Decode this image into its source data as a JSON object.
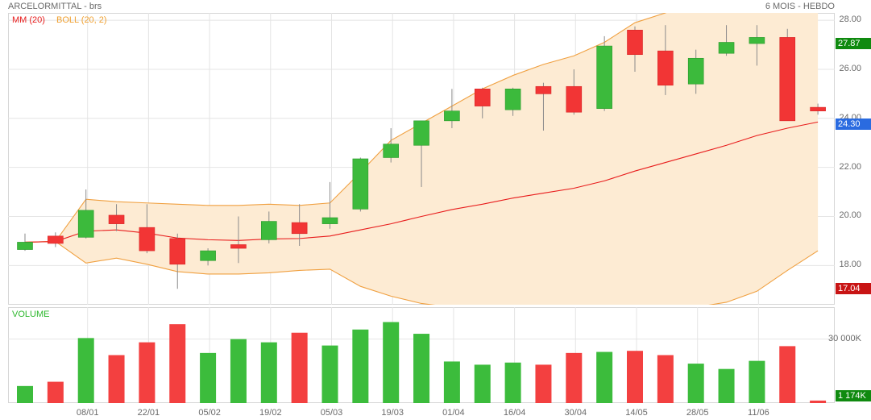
{
  "header": {
    "title": "ARCELORMITTAL - brs",
    "period": "6 MOIS - HEBDO"
  },
  "legend": {
    "mm": "MM (20)",
    "boll": "BOLL (20, 2)",
    "volume": "VOLUME"
  },
  "tags": {
    "high": "27.87",
    "last": "24.30",
    "low": "17.04",
    "volume_last": "1 174K"
  },
  "colors": {
    "up": "#3cba3c",
    "down": "#f23535",
    "mm": "#e81c1c",
    "boll_line": "#f0a040",
    "boll_fill": "#fdebd3"
  },
  "chart_data": [
    {
      "type": "candlestick",
      "ylim": [
        16.4,
        28.3
      ],
      "y_ticks": [
        "18.00",
        "20.00",
        "22.00",
        "24.00",
        "26.00",
        "28.00"
      ],
      "x_ticks": [
        "08/01",
        "22/01",
        "05/02",
        "19/02",
        "05/03",
        "19/03",
        "01/04",
        "16/04",
        "30/04",
        "14/05",
        "28/05",
        "11/06"
      ],
      "candles": [
        {
          "o": 18.65,
          "h": 19.3,
          "l": 18.6,
          "c": 18.95
        },
        {
          "o": 19.2,
          "h": 19.35,
          "l": 18.75,
          "c": 18.9
        },
        {
          "o": 19.15,
          "h": 21.1,
          "l": 19.1,
          "c": 20.25
        },
        {
          "o": 20.05,
          "h": 20.5,
          "l": 19.4,
          "c": 19.7
        },
        {
          "o": 19.55,
          "h": 20.5,
          "l": 18.5,
          "c": 18.6
        },
        {
          "o": 19.1,
          "h": 19.3,
          "l": 17.05,
          "c": 18.05
        },
        {
          "o": 18.2,
          "h": 18.7,
          "l": 18.0,
          "c": 18.6
        },
        {
          "o": 18.85,
          "h": 20.0,
          "l": 18.1,
          "c": 18.7
        },
        {
          "o": 19.05,
          "h": 20.2,
          "l": 18.9,
          "c": 19.8
        },
        {
          "o": 19.75,
          "h": 20.5,
          "l": 18.8,
          "c": 19.3
        },
        {
          "o": 19.7,
          "h": 21.4,
          "l": 19.5,
          "c": 19.95
        },
        {
          "o": 20.3,
          "h": 22.4,
          "l": 20.2,
          "c": 22.35
        },
        {
          "o": 22.4,
          "h": 23.6,
          "l": 22.2,
          "c": 22.95
        },
        {
          "o": 22.9,
          "h": 23.9,
          "l": 21.2,
          "c": 23.9
        },
        {
          "o": 23.9,
          "h": 25.2,
          "l": 23.6,
          "c": 24.3
        },
        {
          "o": 25.2,
          "h": 25.25,
          "l": 24.0,
          "c": 24.5
        },
        {
          "o": 24.35,
          "h": 25.25,
          "l": 24.1,
          "c": 25.2
        },
        {
          "o": 25.3,
          "h": 25.45,
          "l": 23.5,
          "c": 25.0
        },
        {
          "o": 25.3,
          "h": 26.0,
          "l": 24.15,
          "c": 24.25
        },
        {
          "o": 24.4,
          "h": 27.35,
          "l": 24.3,
          "c": 26.95
        },
        {
          "o": 27.6,
          "h": 27.75,
          "l": 25.9,
          "c": 26.6
        },
        {
          "o": 26.75,
          "h": 27.8,
          "l": 24.95,
          "c": 25.35
        },
        {
          "o": 25.4,
          "h": 26.8,
          "l": 25.0,
          "c": 26.45
        },
        {
          "o": 26.65,
          "h": 27.8,
          "l": 26.55,
          "c": 27.1
        },
        {
          "o": 27.05,
          "h": 27.8,
          "l": 26.15,
          "c": 27.3
        },
        {
          "o": 27.3,
          "h": 27.65,
          "l": 23.9,
          "c": 23.9
        },
        {
          "o": 24.45,
          "h": 24.6,
          "l": 24.15,
          "c": 24.3
        }
      ],
      "mm20": [
        18.95,
        18.98,
        19.4,
        19.45,
        19.32,
        19.12,
        19.05,
        19.02,
        19.08,
        19.1,
        19.2,
        19.45,
        19.7,
        20.0,
        20.28,
        20.5,
        20.75,
        20.95,
        21.15,
        21.45,
        21.85,
        22.2,
        22.55,
        22.9,
        23.3,
        23.6,
        23.85
      ],
      "boll_upper": [
        18.95,
        18.98,
        20.7,
        20.6,
        20.55,
        20.5,
        20.45,
        20.45,
        20.5,
        20.45,
        20.55,
        21.8,
        23.1,
        23.8,
        24.5,
        25.2,
        25.75,
        26.2,
        26.55,
        27.1,
        27.9,
        28.3,
        28.85,
        29.5,
        30.0,
        30.5,
        31.0
      ],
      "boll_lower": [
        18.95,
        18.98,
        18.1,
        18.3,
        18.05,
        17.75,
        17.65,
        17.65,
        17.7,
        17.8,
        17.85,
        17.15,
        16.75,
        16.45,
        16.3,
        16.1,
        15.9,
        15.85,
        15.8,
        15.8,
        15.9,
        16.05,
        16.3,
        16.5,
        16.95,
        17.8,
        18.6
      ]
    },
    {
      "type": "bar",
      "name": "VOLUME",
      "ylim": [
        0,
        45000
      ],
      "y_ticks": [
        "30 000K"
      ],
      "values": [
        8000,
        10000,
        30500,
        22500,
        28500,
        37000,
        23500,
        30000,
        28500,
        33000,
        27000,
        34500,
        38000,
        32500,
        19500,
        18000,
        19000,
        18000,
        23500,
        24000,
        24500,
        22500,
        18500,
        16000,
        19800,
        26700,
        1174
      ],
      "up": [
        1,
        0,
        1,
        0,
        0,
        0,
        1,
        1,
        1,
        0,
        1,
        1,
        1,
        1,
        1,
        1,
        1,
        0,
        0,
        1,
        0,
        0,
        1,
        1,
        1,
        0,
        0
      ]
    }
  ]
}
